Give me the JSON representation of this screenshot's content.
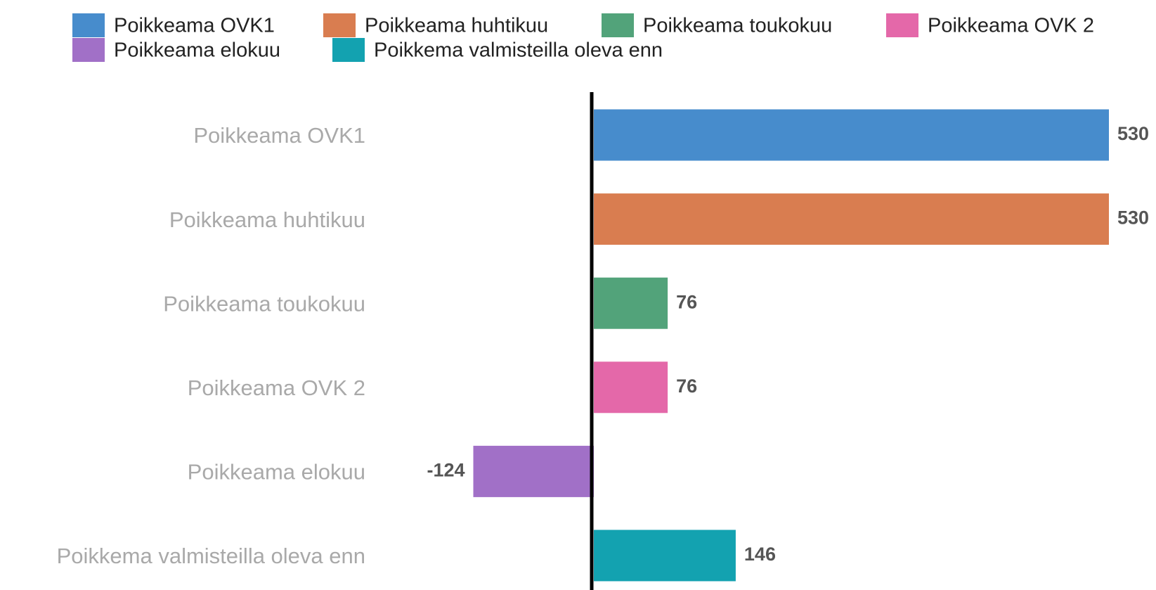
{
  "chart_data": {
    "type": "bar",
    "orientation": "horizontal",
    "categories": [
      "Poikkeama OVK1",
      "Poikkeama huhtikuu",
      "Poikkeama toukokuu",
      "Poikkeama OVK 2",
      "Poikkeama elokuu",
      "Poikkema valmisteilla oleva enn"
    ],
    "values": [
      530,
      530,
      76,
      76,
      -124,
      146
    ],
    "colors": [
      "#478ccc",
      "#d97d50",
      "#52a37a",
      "#e468a9",
      "#a170c7",
      "#13a2b0"
    ],
    "legend": "top"
  }
}
